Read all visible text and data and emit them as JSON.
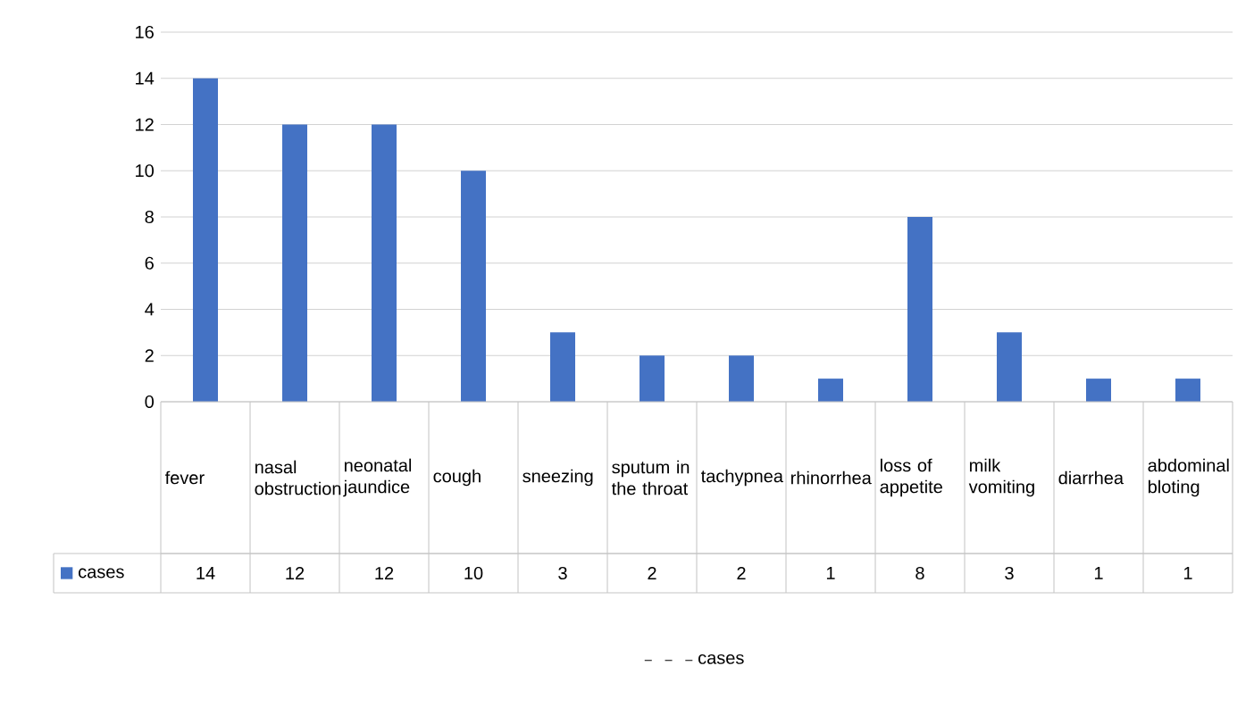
{
  "chart_data": {
    "type": "bar",
    "categories": [
      "fever",
      "nasal obstruction",
      "neonatal jaundice",
      "cough",
      "sneezing",
      "sputum in the throat",
      "tachypnea",
      "rhinorrhea",
      "loss of appetite",
      "milk vomiting",
      "diarrhea",
      "abdominal bloting"
    ],
    "series": [
      {
        "name": "cases",
        "color": "#4472c4",
        "values": [
          14,
          12,
          12,
          10,
          3,
          2,
          2,
          1,
          8,
          3,
          1,
          1
        ]
      }
    ],
    "ylim": [
      0,
      16
    ],
    "yticks": [
      0,
      2,
      4,
      6,
      8,
      10,
      12,
      14,
      16
    ],
    "grid": "y",
    "legend": "bottom",
    "data_labels": true
  }
}
